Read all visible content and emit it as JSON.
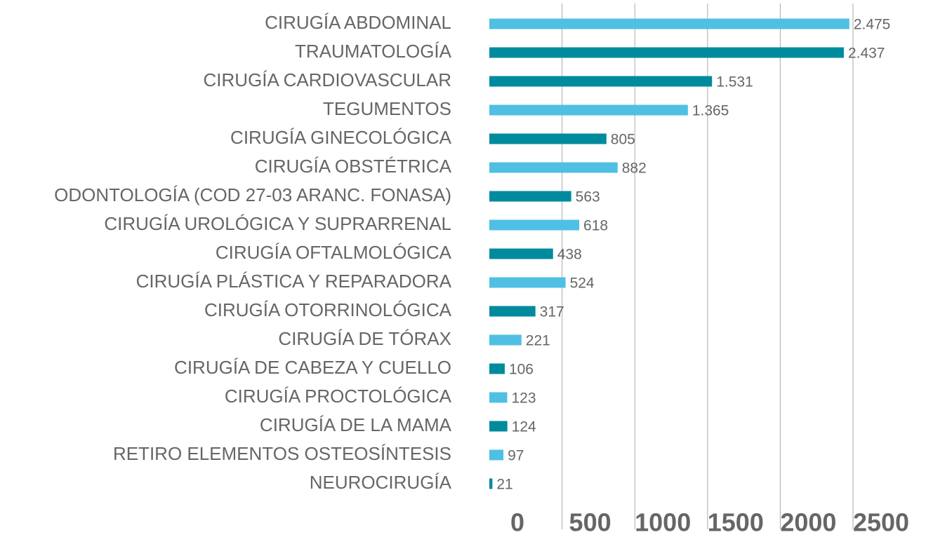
{
  "chart_data": {
    "type": "barh",
    "categories": [
      "CIRUGÍA ABDOMINAL",
      "TRAUMATOLOGÍA",
      "CIRUGÍA CARDIOVASCULAR",
      "TEGUMENTOS",
      "CIRUGÍA GINECOLÓGICA",
      "CIRUGÍA OBSTÉTRICA",
      "ODONTOLOGÍA (COD 27-03 ARANC. FONASA)",
      "CIRUGÍA UROLÓGICA Y SUPRARRENAL",
      "CIRUGÍA OFTALMOLÓGICA",
      "CIRUGÍA PLÁSTICA Y REPARADORA",
      "CIRUGÍA OTORRINOLÓGICA",
      "CIRUGÍA DE TÓRAX",
      "CIRUGÍA DE CABEZA Y CUELLO",
      "CIRUGÍA PROCTOLÓGICA",
      "CIRUGÍA DE LA MAMA",
      "RETIRO ELEMENTOS OSTEOSÍNTESIS",
      "NEUROCIRUGÍA"
    ],
    "values": [
      2475,
      2437,
      1531,
      1365,
      805,
      882,
      563,
      618,
      438,
      524,
      317,
      221,
      106,
      123,
      124,
      97,
      21
    ],
    "value_labels": [
      "2.475",
      "2.437",
      "1.531",
      "1.365",
      "805",
      "882",
      "563",
      "618",
      "438",
      "524",
      "317",
      "221",
      "106",
      "123",
      "124",
      "97",
      "21"
    ],
    "colors": [
      "#4fc0e3",
      "#008a9e",
      "#008a9e",
      "#4fc0e3",
      "#008a9e",
      "#4fc0e3",
      "#008a9e",
      "#4fc0e3",
      "#008a9e",
      "#4fc0e3",
      "#008a9e",
      "#4fc0e3",
      "#008a9e",
      "#4fc0e3",
      "#008a9e",
      "#4fc0e3",
      "#008a9e"
    ],
    "xlim": [
      0,
      2500
    ],
    "xticks": [
      0,
      500,
      1000,
      1500,
      2000,
      2500
    ],
    "grid": true
  }
}
